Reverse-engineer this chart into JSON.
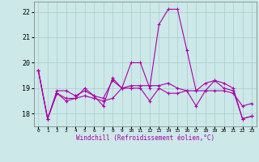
{
  "xlabel": "Windchill (Refroidissement éolien,°C)",
  "bg_color": "#cce8e8",
  "grid_color": "#aacccc",
  "line_color": "#aa00aa",
  "xlim": [
    -0.5,
    23.5
  ],
  "ylim": [
    17.5,
    22.4
  ],
  "yticks": [
    18,
    19,
    20,
    21,
    22
  ],
  "xticks": [
    0,
    1,
    2,
    3,
    4,
    5,
    6,
    7,
    8,
    9,
    10,
    11,
    12,
    13,
    14,
    15,
    16,
    17,
    18,
    19,
    20,
    21,
    22,
    23
  ],
  "series": [
    [
      19.7,
      17.8,
      18.9,
      18.9,
      18.7,
      18.9,
      18.7,
      18.3,
      19.4,
      19.0,
      20.0,
      20.0,
      19.0,
      21.5,
      22.1,
      22.1,
      20.5,
      18.9,
      19.2,
      19.3,
      19.2,
      19.0,
      17.8,
      17.9
    ],
    [
      19.7,
      17.8,
      18.8,
      18.5,
      18.6,
      18.7,
      18.6,
      18.5,
      18.6,
      19.0,
      19.1,
      19.1,
      19.1,
      19.1,
      19.2,
      19.0,
      18.9,
      18.9,
      18.9,
      18.9,
      18.9,
      18.8,
      18.3,
      18.4
    ],
    [
      19.7,
      17.8,
      18.8,
      18.6,
      18.6,
      19.0,
      18.7,
      18.6,
      19.3,
      19.0,
      19.0,
      19.0,
      18.5,
      19.0,
      18.8,
      18.8,
      18.9,
      18.3,
      18.9,
      19.3,
      19.0,
      18.9,
      17.8,
      17.9
    ]
  ]
}
